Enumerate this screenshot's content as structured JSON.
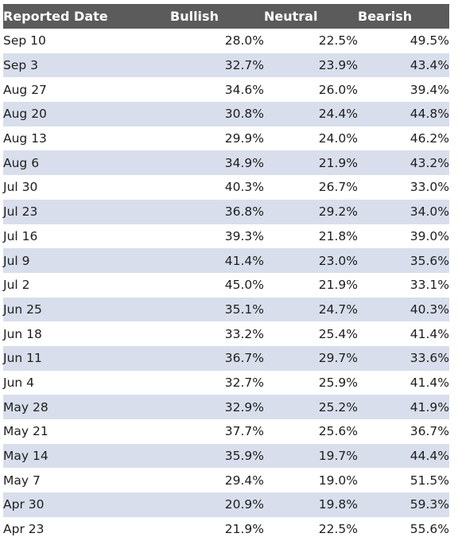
{
  "table": {
    "headers": {
      "date": "Reported Date",
      "bullish": "Bullish",
      "neutral": "Neutral",
      "bearish": "Bearish"
    },
    "rows": [
      {
        "date": "Sep 10",
        "bullish": "28.0%",
        "neutral": "22.5%",
        "bearish": "49.5%"
      },
      {
        "date": "Sep 3",
        "bullish": "32.7%",
        "neutral": "23.9%",
        "bearish": "43.4%"
      },
      {
        "date": "Aug 27",
        "bullish": "34.6%",
        "neutral": "26.0%",
        "bearish": "39.4%"
      },
      {
        "date": "Aug 20",
        "bullish": "30.8%",
        "neutral": "24.4%",
        "bearish": "44.8%"
      },
      {
        "date": "Aug 13",
        "bullish": "29.9%",
        "neutral": "24.0%",
        "bearish": "46.2%"
      },
      {
        "date": "Aug 6",
        "bullish": "34.9%",
        "neutral": "21.9%",
        "bearish": "43.2%"
      },
      {
        "date": "Jul 30",
        "bullish": "40.3%",
        "neutral": "26.7%",
        "bearish": "33.0%"
      },
      {
        "date": "Jul 23",
        "bullish": "36.8%",
        "neutral": "29.2%",
        "bearish": "34.0%"
      },
      {
        "date": "Jul 16",
        "bullish": "39.3%",
        "neutral": "21.8%",
        "bearish": "39.0%"
      },
      {
        "date": "Jul 9",
        "bullish": "41.4%",
        "neutral": "23.0%",
        "bearish": "35.6%"
      },
      {
        "date": "Jul 2",
        "bullish": "45.0%",
        "neutral": "21.9%",
        "bearish": "33.1%"
      },
      {
        "date": "Jun 25",
        "bullish": "35.1%",
        "neutral": "24.7%",
        "bearish": "40.3%"
      },
      {
        "date": "Jun 18",
        "bullish": "33.2%",
        "neutral": "25.4%",
        "bearish": "41.4%"
      },
      {
        "date": "Jun 11",
        "bullish": "36.7%",
        "neutral": "29.7%",
        "bearish": "33.6%"
      },
      {
        "date": "Jun 4",
        "bullish": "32.7%",
        "neutral": "25.9%",
        "bearish": "41.4%"
      },
      {
        "date": "May 28",
        "bullish": "32.9%",
        "neutral": "25.2%",
        "bearish": "41.9%"
      },
      {
        "date": "May 21",
        "bullish": "37.7%",
        "neutral": "25.6%",
        "bearish": "36.7%"
      },
      {
        "date": "May 14",
        "bullish": "35.9%",
        "neutral": "19.7%",
        "bearish": "44.4%"
      },
      {
        "date": "May 7",
        "bullish": "29.4%",
        "neutral": "19.0%",
        "bearish": "51.5%"
      },
      {
        "date": "Apr 30",
        "bullish": "20.9%",
        "neutral": "19.8%",
        "bearish": "59.3%"
      },
      {
        "date": "Apr 23",
        "bullish": "21.9%",
        "neutral": "22.5%",
        "bearish": "55.6%"
      }
    ]
  },
  "colors": {
    "header_bg": "#5b5b5b",
    "header_text": "#ffffff",
    "stripe": "#d8deeb",
    "row_bg": "#ffffff",
    "text": "#1e1e1e"
  }
}
